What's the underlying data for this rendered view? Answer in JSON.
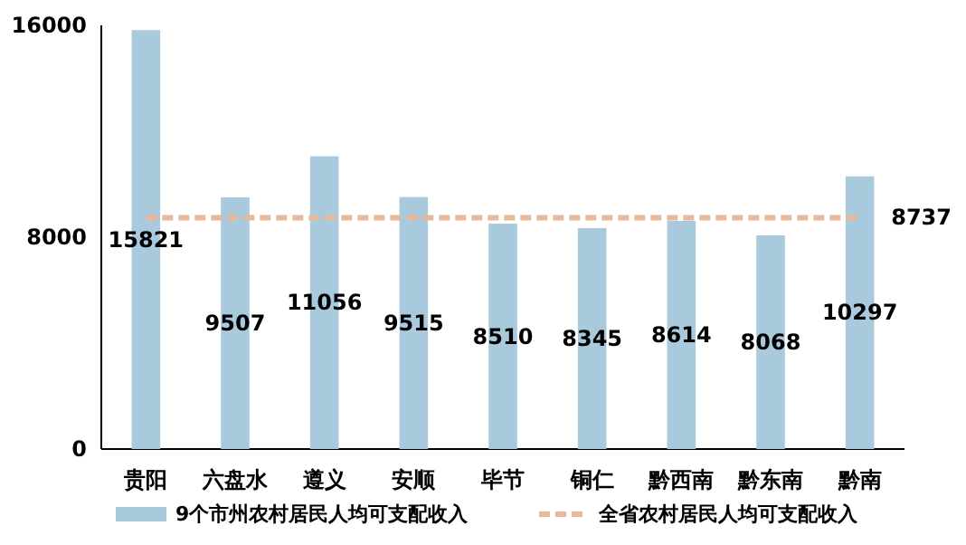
{
  "chart_data": {
    "type": "bar",
    "categories": [
      "贵阳",
      "六盘水",
      "遵义",
      "安顺",
      "毕节",
      "铜仁",
      "黔西南",
      "黔东南",
      "黔南"
    ],
    "series": [
      {
        "name": "9个市州农村居民人均可支配收入",
        "color": "#a9c9dc",
        "values": [
          15821,
          9507,
          11056,
          9515,
          8510,
          8345,
          8614,
          8068,
          10297
        ],
        "value_labels": [
          "15821",
          "9507",
          "11056",
          "9515",
          "8510",
          "8345",
          "8614",
          "8068",
          "10297"
        ]
      },
      {
        "name": "全省农村居民人均可支配收入",
        "type": "line",
        "color": "#e8b89a",
        "line_style": "dashed",
        "values": [
          8737,
          8737,
          8737,
          8737,
          8737,
          8737,
          8737,
          8737,
          8737
        ],
        "value_labels": [
          null,
          null,
          null,
          null,
          null,
          null,
          null,
          null,
          "8737"
        ]
      }
    ],
    "ylim": [
      0,
      16000
    ],
    "yticks": [
      0,
      8000,
      16000
    ],
    "grid": false,
    "legend": "bottom"
  }
}
